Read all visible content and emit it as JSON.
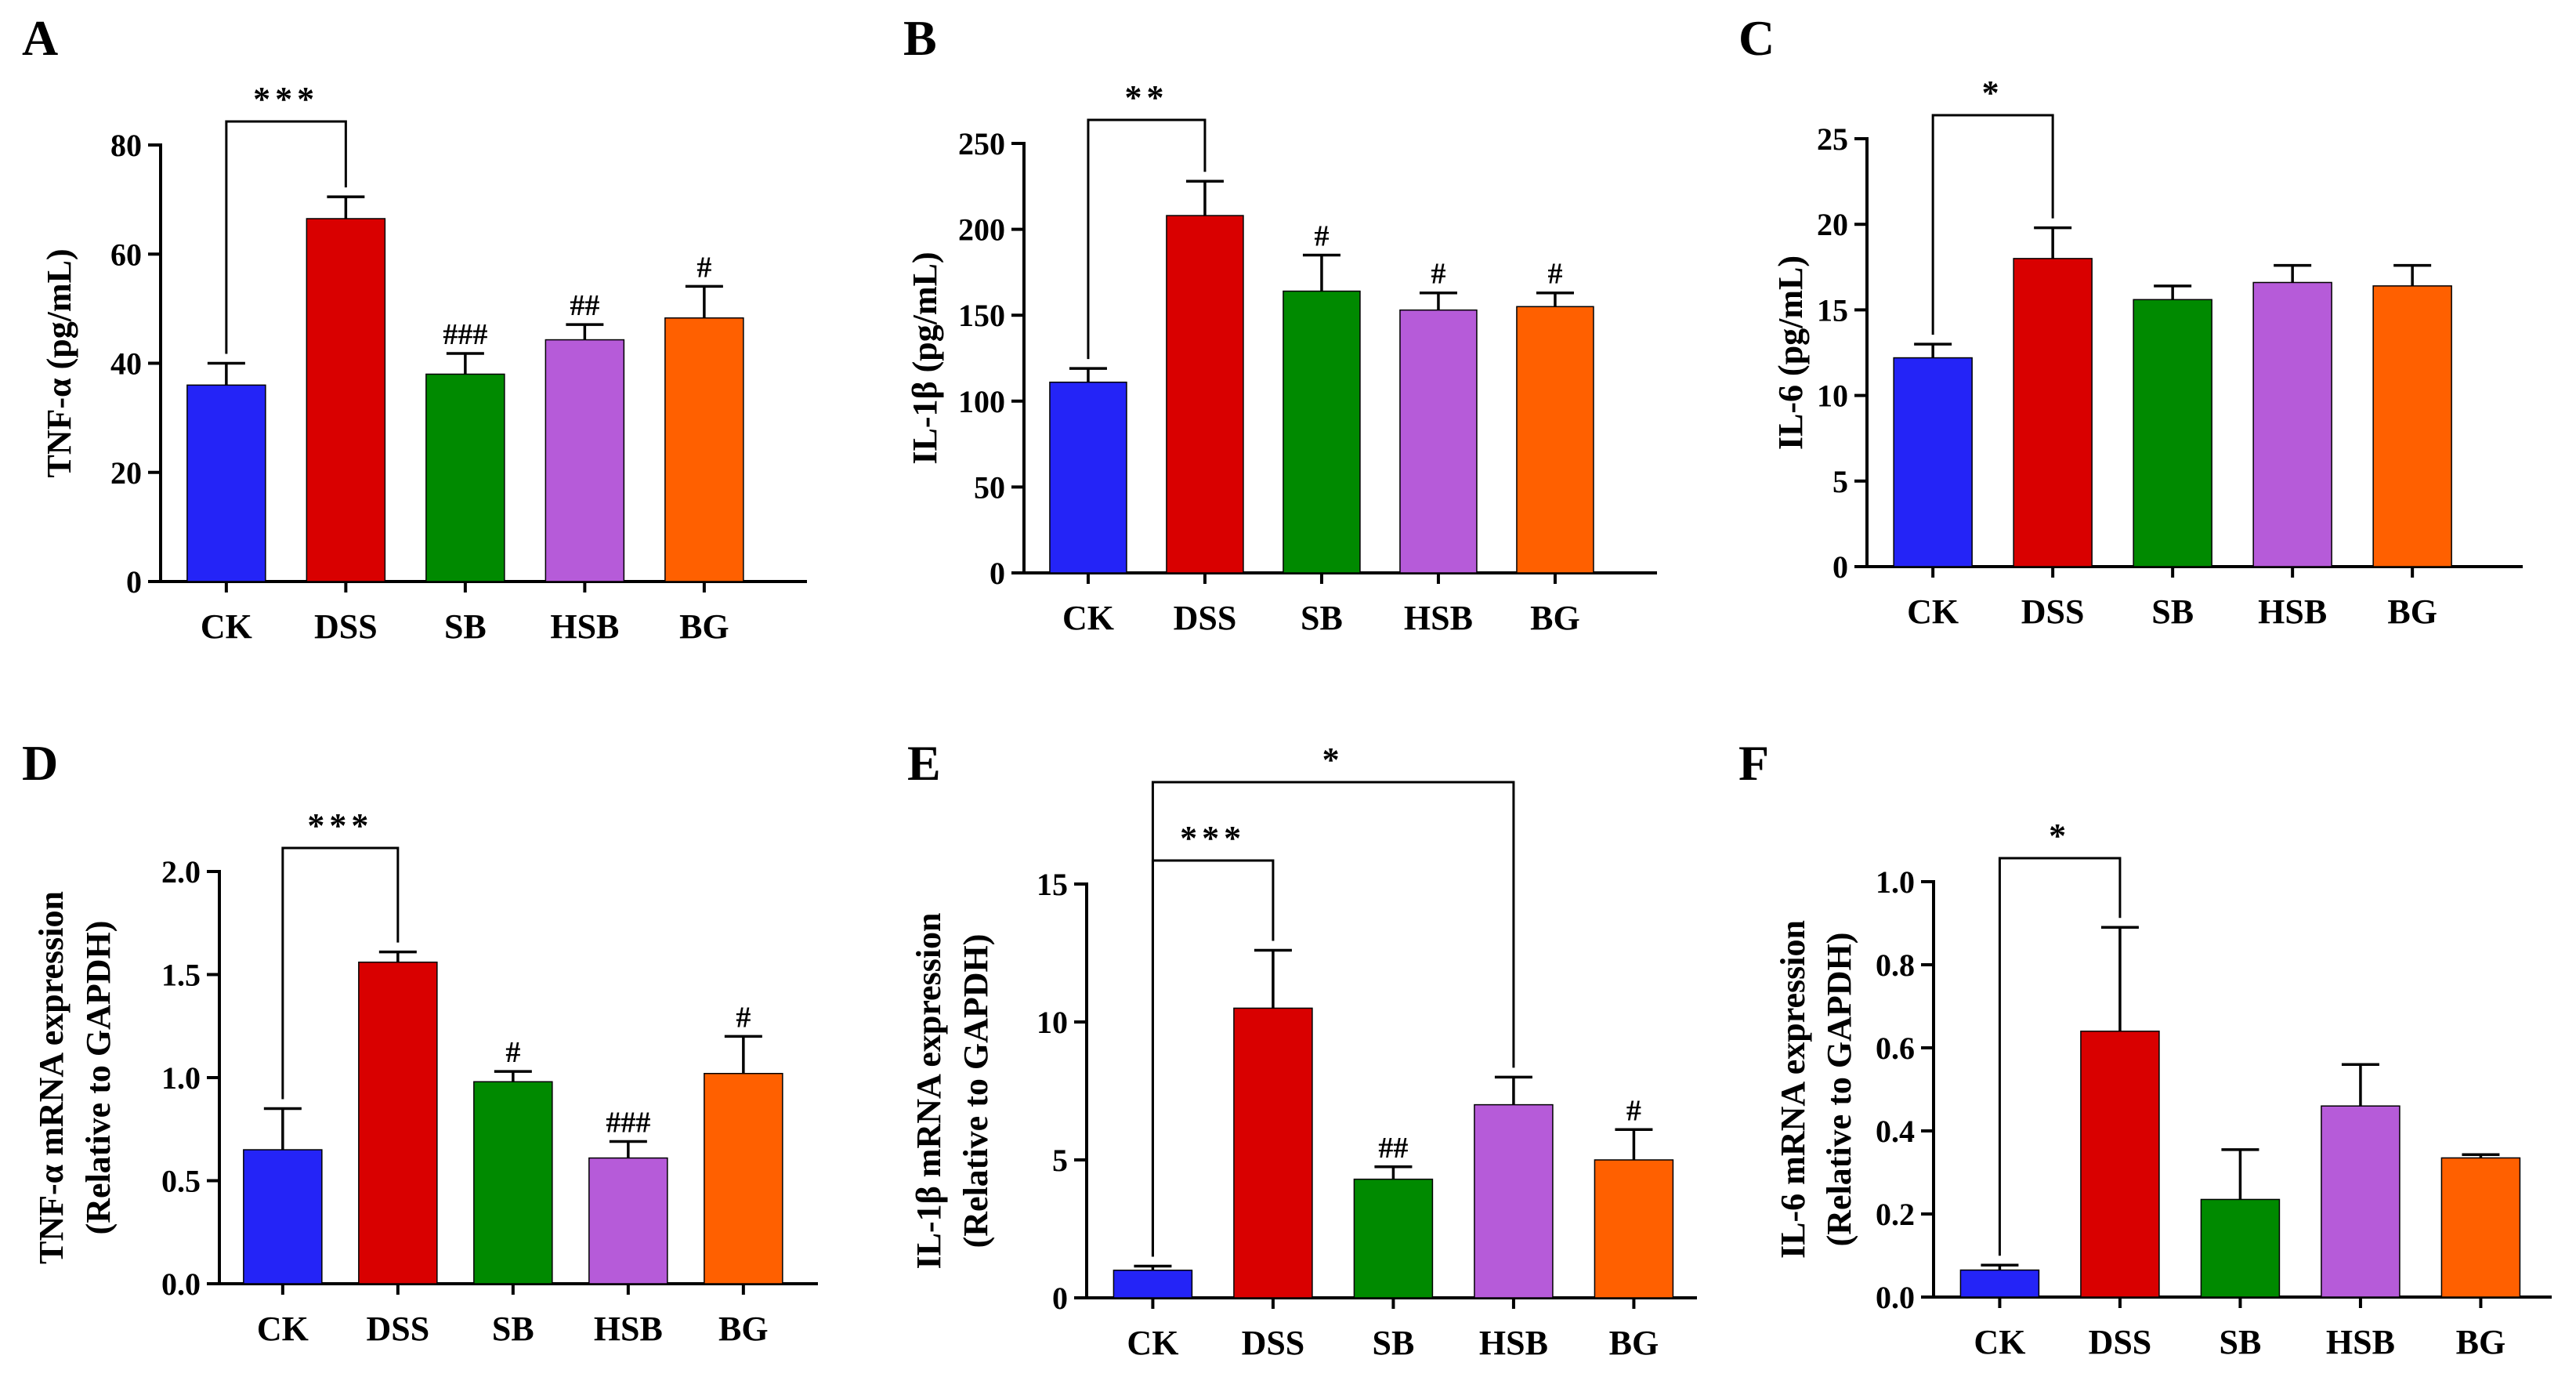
{
  "colors": {
    "CK": "#2424f7",
    "DSS": "#d90000",
    "SB": "#008a00",
    "HSB": "#b65bd9",
    "BG": "#ff6000"
  },
  "chart_data": [
    {
      "panel": "A",
      "type": "bar",
      "ylabel": "TNF-α (pg/mL)",
      "categories": [
        "CK",
        "DSS",
        "SB",
        "HSB",
        "BG"
      ],
      "values": [
        36,
        66.5,
        38,
        44.3,
        48.3
      ],
      "errors": [
        4,
        4,
        3.8,
        2.8,
        5.8
      ],
      "ylim": [
        0,
        80
      ],
      "yticks": [
        "0",
        "20",
        "40",
        "60",
        "80"
      ],
      "annotations": [
        "",
        "",
        "###",
        "##",
        "#"
      ],
      "brackets": [
        {
          "from": 0,
          "to": 1,
          "label": "***"
        }
      ]
    },
    {
      "panel": "B",
      "type": "bar",
      "ylabel": "IL-1β (pg/mL)",
      "categories": [
        "CK",
        "DSS",
        "SB",
        "HSB",
        "BG"
      ],
      "values": [
        111,
        208,
        164,
        153,
        155
      ],
      "errors": [
        8,
        20,
        21,
        10,
        8
      ],
      "ylim": [
        0,
        250
      ],
      "yticks": [
        "0",
        "50",
        "100",
        "150",
        "200",
        "250"
      ],
      "annotations": [
        "",
        "",
        "#",
        "#",
        "#"
      ],
      "brackets": [
        {
          "from": 0,
          "to": 1,
          "label": "**"
        }
      ]
    },
    {
      "panel": "C",
      "type": "bar",
      "ylabel": "IL-6 (pg/mL)",
      "categories": [
        "CK",
        "DSS",
        "SB",
        "HSB",
        "BG"
      ],
      "values": [
        12.2,
        18,
        15.6,
        16.6,
        16.4
      ],
      "errors": [
        0.8,
        1.8,
        0.8,
        1.0,
        1.2
      ],
      "ylim": [
        0,
        25
      ],
      "yticks": [
        "0",
        "5",
        "10",
        "15",
        "20",
        "25"
      ],
      "annotations": [
        "",
        "",
        "",
        "",
        ""
      ],
      "brackets": [
        {
          "from": 0,
          "to": 1,
          "label": "*"
        }
      ]
    },
    {
      "panel": "D",
      "type": "bar",
      "ylabel": "TNF-α mRNA expression",
      "ylabel2": "(Relative to GAPDH)",
      "categories": [
        "CK",
        "DSS",
        "SB",
        "HSB",
        "BG"
      ],
      "values": [
        0.65,
        1.56,
        0.98,
        0.61,
        1.02
      ],
      "errors": [
        0.2,
        0.05,
        0.05,
        0.08,
        0.18
      ],
      "ylim": [
        0,
        2
      ],
      "yticks": [
        "0.0",
        "0.5",
        "1.0",
        "1.5",
        "2.0"
      ],
      "annotations": [
        "",
        "",
        "#",
        "###",
        "#"
      ],
      "brackets": [
        {
          "from": 0,
          "to": 1,
          "label": "***"
        }
      ]
    },
    {
      "panel": "E",
      "type": "bar",
      "ylabel": "IL-1β mRNA expression",
      "ylabel2": "(Relative to GAPDH)",
      "categories": [
        "CK",
        "DSS",
        "SB",
        "HSB",
        "BG"
      ],
      "values": [
        1.0,
        10.5,
        4.3,
        7.0,
        5.0
      ],
      "errors": [
        0.15,
        2.1,
        0.45,
        1.0,
        1.1
      ],
      "ylim": [
        0,
        15
      ],
      "yticks": [
        "0",
        "5",
        "10",
        "15"
      ],
      "annotations": [
        "",
        "",
        "##",
        "",
        "#"
      ],
      "brackets": [
        {
          "from": 0,
          "to": 1,
          "label": "***"
        },
        {
          "from": 0,
          "to": 3,
          "label": "*"
        }
      ]
    },
    {
      "panel": "F",
      "type": "bar",
      "ylabel": "IL-6 mRNA expression",
      "ylabel2": "(Relative to GAPDH)",
      "categories": [
        "CK",
        "DSS",
        "SB",
        "HSB",
        "BG"
      ],
      "values": [
        0.065,
        0.64,
        0.235,
        0.46,
        0.335
      ],
      "errors": [
        0.012,
        0.25,
        0.12,
        0.1,
        0.008
      ],
      "ylim": [
        0,
        1.0
      ],
      "yticks": [
        "0.0",
        "0.2",
        "0.4",
        "0.6",
        "0.8",
        "1.0"
      ],
      "annotations": [
        "",
        "",
        "",
        "",
        ""
      ],
      "brackets": [
        {
          "from": 0,
          "to": 1,
          "label": "*"
        }
      ]
    }
  ]
}
